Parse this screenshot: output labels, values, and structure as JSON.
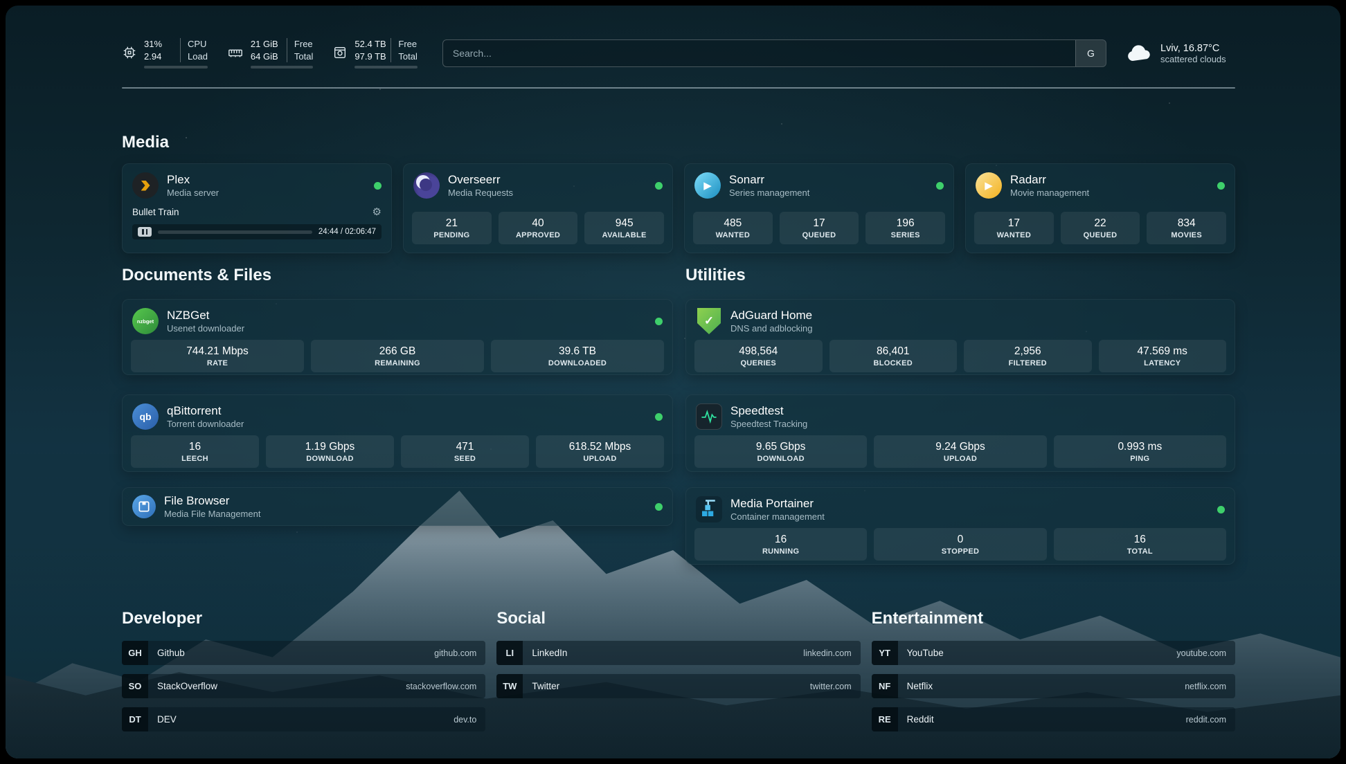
{
  "topbar": {
    "cpu": {
      "value1": "31%",
      "value2": "2.94",
      "label1": "CPU",
      "label2": "Load",
      "progress_pct": 31
    },
    "memory": {
      "value1": "21 GiB",
      "value2": "64 GiB",
      "label1": "Free",
      "label2": "Total",
      "progress_pct": 67
    },
    "disk": {
      "value1": "52.4 TB",
      "value2": "97.9 TB",
      "label1": "Free",
      "label2": "Total",
      "progress_pct": 47
    },
    "search": {
      "placeholder": "Search...",
      "engine_button": "G"
    },
    "weather": {
      "location": "Lviv, 16.87°C",
      "condition": "scattered clouds"
    }
  },
  "media": {
    "title": "Media",
    "plex": {
      "name": "Plex",
      "subtitle": "Media server",
      "now_playing": "Bullet Train",
      "time": "24:44 / 02:06:47",
      "progress_pct": 19
    },
    "overseerr": {
      "name": "Overseerr",
      "subtitle": "Media Requests",
      "stats": [
        {
          "value": "21",
          "label": "PENDING"
        },
        {
          "value": "40",
          "label": "APPROVED"
        },
        {
          "value": "945",
          "label": "AVAILABLE"
        }
      ]
    },
    "sonarr": {
      "name": "Sonarr",
      "subtitle": "Series management",
      "stats": [
        {
          "value": "485",
          "label": "WANTED"
        },
        {
          "value": "17",
          "label": "QUEUED"
        },
        {
          "value": "196",
          "label": "SERIES"
        }
      ]
    },
    "radarr": {
      "name": "Radarr",
      "subtitle": "Movie management",
      "stats": [
        {
          "value": "17",
          "label": "WANTED"
        },
        {
          "value": "22",
          "label": "QUEUED"
        },
        {
          "value": "834",
          "label": "MOVIES"
        }
      ]
    }
  },
  "documents": {
    "title": "Documents & Files",
    "nzbget": {
      "name": "NZBGet",
      "subtitle": "Usenet downloader",
      "icon_text": "nzbget",
      "stats": [
        {
          "value": "744.21 Mbps",
          "label": "RATE"
        },
        {
          "value": "266 GB",
          "label": "REMAINING"
        },
        {
          "value": "39.6 TB",
          "label": "DOWNLOADED"
        }
      ]
    },
    "qbittorrent": {
      "name": "qBittorrent",
      "subtitle": "Torrent downloader",
      "icon_text": "qb",
      "stats": [
        {
          "value": "16",
          "label": "LEECH"
        },
        {
          "value": "1.19 Gbps",
          "label": "DOWNLOAD"
        },
        {
          "value": "471",
          "label": "SEED"
        },
        {
          "value": "618.52 Mbps",
          "label": "UPLOAD"
        }
      ]
    },
    "filebrowser": {
      "name": "File Browser",
      "subtitle": "Media File Management"
    }
  },
  "utilities": {
    "title": "Utilities",
    "adguard": {
      "name": "AdGuard Home",
      "subtitle": "DNS and adblocking",
      "stats": [
        {
          "value": "498,564",
          "label": "QUERIES"
        },
        {
          "value": "86,401",
          "label": "BLOCKED"
        },
        {
          "value": "2,956",
          "label": "FILTERED"
        },
        {
          "value": "47.569 ms",
          "label": "LATENCY"
        }
      ]
    },
    "speedtest": {
      "name": "Speedtest",
      "subtitle": "Speedtest Tracking",
      "stats": [
        {
          "value": "9.65 Gbps",
          "label": "DOWNLOAD"
        },
        {
          "value": "9.24 Gbps",
          "label": "UPLOAD"
        },
        {
          "value": "0.993 ms",
          "label": "PING"
        }
      ]
    },
    "portainer": {
      "name": "Media Portainer",
      "subtitle": "Container management",
      "stats": [
        {
          "value": "16",
          "label": "RUNNING"
        },
        {
          "value": "0",
          "label": "STOPPED"
        },
        {
          "value": "16",
          "label": "TOTAL"
        }
      ]
    }
  },
  "links": {
    "developer": {
      "title": "Developer",
      "items": [
        {
          "badge": "GH",
          "name": "Github",
          "url": "github.com"
        },
        {
          "badge": "SO",
          "name": "StackOverflow",
          "url": "stackoverflow.com"
        },
        {
          "badge": "DT",
          "name": "DEV",
          "url": "dev.to"
        }
      ]
    },
    "social": {
      "title": "Social",
      "items": [
        {
          "badge": "LI",
          "name": "LinkedIn",
          "url": "linkedin.com"
        },
        {
          "badge": "TW",
          "name": "Twitter",
          "url": "twitter.com"
        }
      ]
    },
    "entertainment": {
      "title": "Entertainment",
      "items": [
        {
          "badge": "YT",
          "name": "YouTube",
          "url": "youtube.com"
        },
        {
          "badge": "NF",
          "name": "Netflix",
          "url": "netflix.com"
        },
        {
          "badge": "RE",
          "name": "Reddit",
          "url": "reddit.com"
        }
      ]
    }
  },
  "icons": {
    "adguard_check": "✓",
    "gear": "⚙",
    "play": "▶"
  },
  "colors": {
    "status_online": "#3ecf6b",
    "plex_accent": "#e5a00d"
  }
}
